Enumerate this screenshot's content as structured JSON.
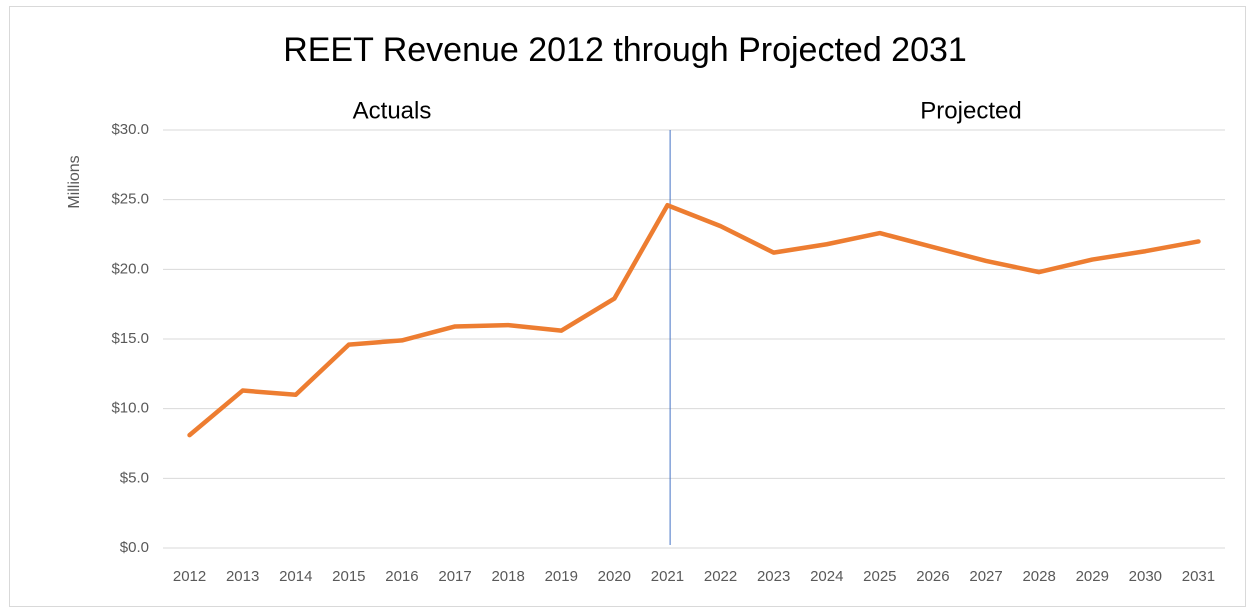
{
  "chart_data": {
    "type": "line",
    "title": "REET Revenue 2012 through Projected 2031",
    "annotations": [
      "Actuals",
      "Projected"
    ],
    "ylabel": "Millions",
    "categories": [
      "2012",
      "2013",
      "2014",
      "2015",
      "2016",
      "2017",
      "2018",
      "2019",
      "2020",
      "2021",
      "2022",
      "2023",
      "2024",
      "2025",
      "2026",
      "2027",
      "2028",
      "2029",
      "2030",
      "2031"
    ],
    "series": [
      {
        "name": "REET Revenue",
        "color": "#ed7d31",
        "values": [
          8.1,
          11.3,
          11.0,
          14.6,
          14.9,
          15.9,
          16.0,
          15.6,
          17.9,
          24.6,
          23.1,
          21.2,
          21.8,
          22.6,
          21.6,
          20.6,
          19.8,
          20.7,
          21.3,
          22.0
        ]
      }
    ],
    "ylim": [
      0,
      30
    ],
    "yticks": [
      {
        "value": 0,
        "label": "$0.0"
      },
      {
        "value": 5,
        "label": "$5.0"
      },
      {
        "value": 10,
        "label": "$10.0"
      },
      {
        "value": 15,
        "label": "$15.0"
      },
      {
        "value": 20,
        "label": "$20.0"
      },
      {
        "value": 25,
        "label": "$25.0"
      },
      {
        "value": 30,
        "label": "$30.0"
      }
    ],
    "grid": true
  }
}
